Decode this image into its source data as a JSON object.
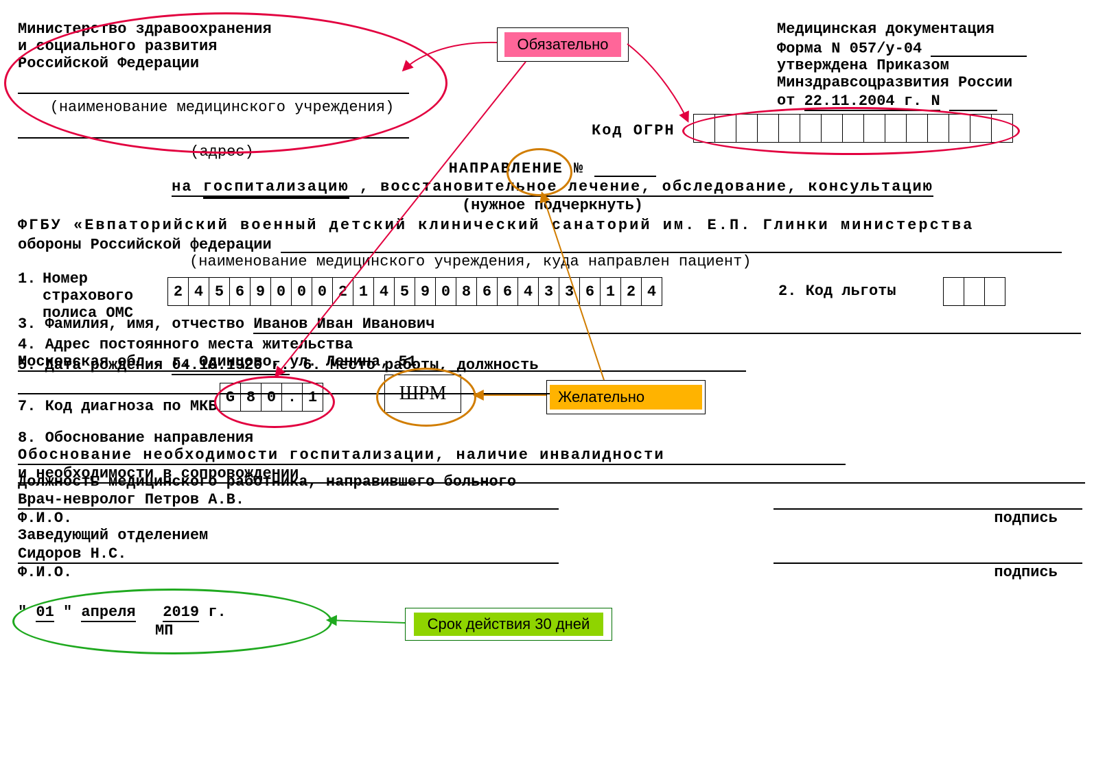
{
  "header_left": {
    "l1": "Министерство здравоохранения",
    "l2": "и социального развития",
    "l3": "Российской Федерации",
    "cap1": "(наименование медицинского учреждения)",
    "cap2": "(адрес)"
  },
  "header_right": {
    "l1": "Медицинская документация",
    "l2": "Форма N 057/у-04",
    "l3": "утверждена Приказом",
    "l4": "Минздравсоцразвития России",
    "l5_pre": "от ",
    "l5_date": "22.11.2004 г. N"
  },
  "ogrn": {
    "label": "Код ОГРН",
    "count": 15
  },
  "title": {
    "l1_pre": "НАПРАВЛЕНИЕ №",
    "l2_pre": "на ",
    "l2_u": "госпитализацию",
    "l2_rest": ", восстановительное лечение, обследование, консультацию",
    "l3": "(нужное подчеркнуть)"
  },
  "dest": {
    "text": "ФГБУ «Евпаторийский  военный детский клинический санаторий им. Е.П. Глинки  министерства",
    "text2": "обороны Российской  федерации",
    "cap": "(наименование медицинского учреждения, куда направлен пациент)"
  },
  "f1": {
    "label": "1.",
    "t1": "Номер",
    "t2": "страхового",
    "t3": "полиса ОМС",
    "cells": [
      "2",
      "4",
      "5",
      "6",
      "9",
      "0",
      "0",
      "0",
      "2",
      "1",
      "4",
      "5",
      "9",
      "0",
      "8",
      "6",
      "6",
      "4",
      "3",
      "3",
      "6",
      "1",
      "2",
      "4"
    ]
  },
  "f2": {
    "label": "2. Код льготы",
    "count": 3
  },
  "f3": {
    "label": "3. Фамилия, имя, отчество ",
    "value": "Иванов Иван Иванович"
  },
  "f4": {
    "label": "4. Адрес постоянного места жительства ",
    "value": "Московская обл., г. Одинцово, ул. Ленина, 51"
  },
  "f5": {
    "label": "5. Дата рождения ",
    "value": "04.10.1920 г."
  },
  "f6": {
    "label": "6. Место работы, должность "
  },
  "f7": {
    "label": "7. Код диагноза по МКБ",
    "cells": [
      "G",
      "8",
      "0",
      ".",
      "1"
    ]
  },
  "f8": {
    "label": "8. Обоснование направления ",
    "v1": "Обоснование необходимости госпитализации, наличие инвалидности",
    "v2": "и необходимости в сопровождении"
  },
  "staff": {
    "t1": "Должность медицинского работника, направившего больного",
    "v1": "Врач-невролог Петров А.В.",
    "fio": "Ф.И.О.",
    "sign": "подпись",
    "t2": "Заведующий отделением",
    "v2": "Сидоров Н.С."
  },
  "date": {
    "q1": "\"",
    "d": " 01 ",
    "q2": "\"",
    "m": " апреля ",
    "y": "2019 ",
    "y_suf": " г.",
    "mp": "МП"
  },
  "annot": {
    "mandatory": {
      "text": "Обязательно",
      "bg": "#ff6699",
      "border": "#000"
    },
    "optional": {
      "text": "Желательно",
      "bg": "#ffb300",
      "border": "#000"
    },
    "validity": {
      "text": "Срок действия 30 дней",
      "bg": "#8fd400",
      "border": "#007000"
    },
    "shrm": {
      "text": "ШРМ"
    }
  },
  "colors": {
    "red": "#e2003f",
    "green": "#1fa91f",
    "orange": "#d17d00"
  }
}
